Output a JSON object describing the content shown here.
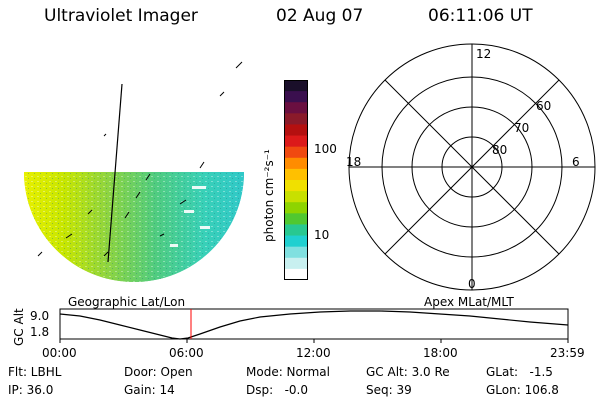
{
  "header": {
    "instrument": "Ultraviolet Imager",
    "date": "02 Aug 07",
    "time": "06:11:06 UT"
  },
  "colorbar": {
    "unit_label": "photon cm⁻²s⁻¹",
    "ticks": [
      "100",
      "10"
    ],
    "colors": [
      "#1a0f2a",
      "#3a0f4e",
      "#6a0f40",
      "#8a1a2a",
      "#b41010",
      "#dc1a1a",
      "#f04a10",
      "#ff8c00",
      "#ffc000",
      "#f0e000",
      "#c8e000",
      "#8ed400",
      "#50c830",
      "#28c890",
      "#20d0d0",
      "#80e0e0",
      "#c8f0f0",
      "#ffffff"
    ]
  },
  "imager": {
    "label": "Geographic Lat/Lon"
  },
  "polar": {
    "label": "Apex MLat/MLT",
    "mlt_labels": {
      "top": "12",
      "bottom": "0",
      "left": "18",
      "right": "6"
    },
    "mlat_labels": [
      "60",
      "70",
      "80"
    ]
  },
  "altitude": {
    "label": "GC Alt",
    "y_ticks": [
      "9.0",
      "1.8"
    ],
    "x_ticks": [
      "00:00",
      "06:00",
      "12:00",
      "18:00",
      "23:59"
    ],
    "marker_time": "06:11"
  },
  "info": {
    "flt": "Flt: LBHL",
    "ip": "IP: 36.0",
    "door": "Door: Open",
    "gain": "Gain: 14",
    "mode": "Mode: Normal",
    "dsp": "Dsp:   -0.0",
    "gc_alt": "GC Alt: 3.0 Re",
    "seq": "Seq: 39",
    "glat": "GLat:   -1.5",
    "glon": "GLon: 106.8"
  }
}
